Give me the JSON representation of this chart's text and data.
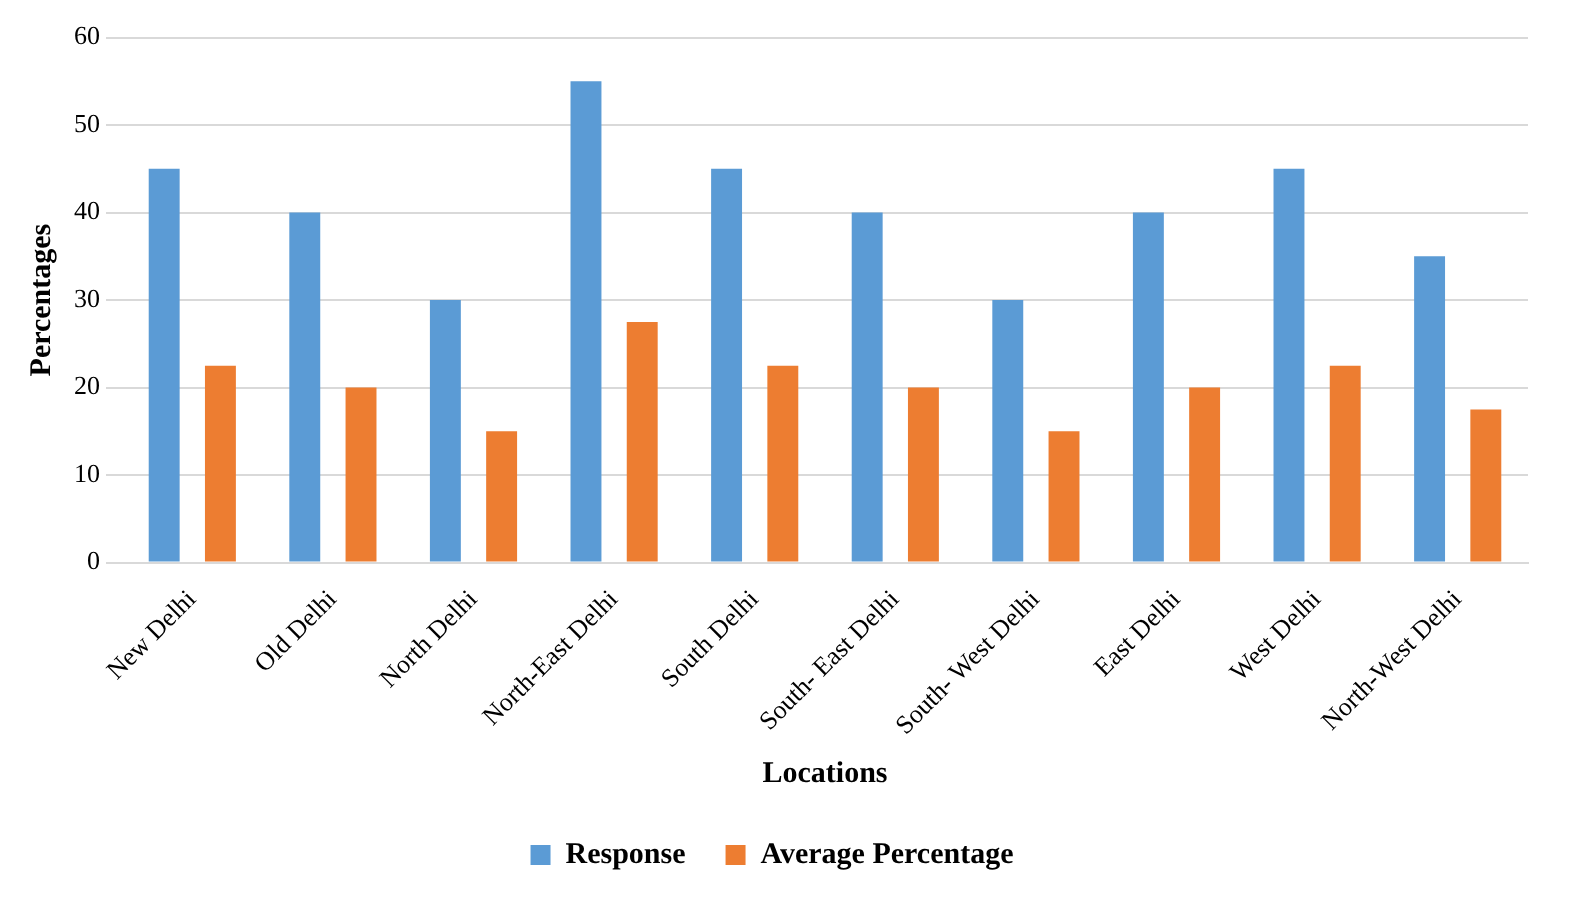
{
  "chart_data": {
    "type": "bar",
    "xlabel": "Locations",
    "ylabel": "Percentages",
    "categories": [
      "New Delhi",
      "Old Delhi",
      "North Delhi",
      "North-East Delhi",
      "South Delhi",
      "South- East Delhi",
      "South- West Delhi",
      "East Delhi",
      "West Delhi",
      "North-West Delhi"
    ],
    "series": [
      {
        "name": "Response",
        "color": "#5b9bd5",
        "values": [
          45,
          40,
          30,
          55,
          45,
          40,
          30,
          40,
          45,
          35
        ]
      },
      {
        "name": "Average Percentage",
        "color": "#ed7d31",
        "values": [
          22.5,
          20,
          15,
          27.5,
          22.5,
          20,
          15,
          20,
          22.5,
          17.5
        ]
      }
    ],
    "ylim": [
      0,
      60
    ],
    "yticks": [
      0,
      10,
      20,
      30,
      40,
      50,
      60
    ],
    "grid": "y",
    "legend": "bottom"
  }
}
